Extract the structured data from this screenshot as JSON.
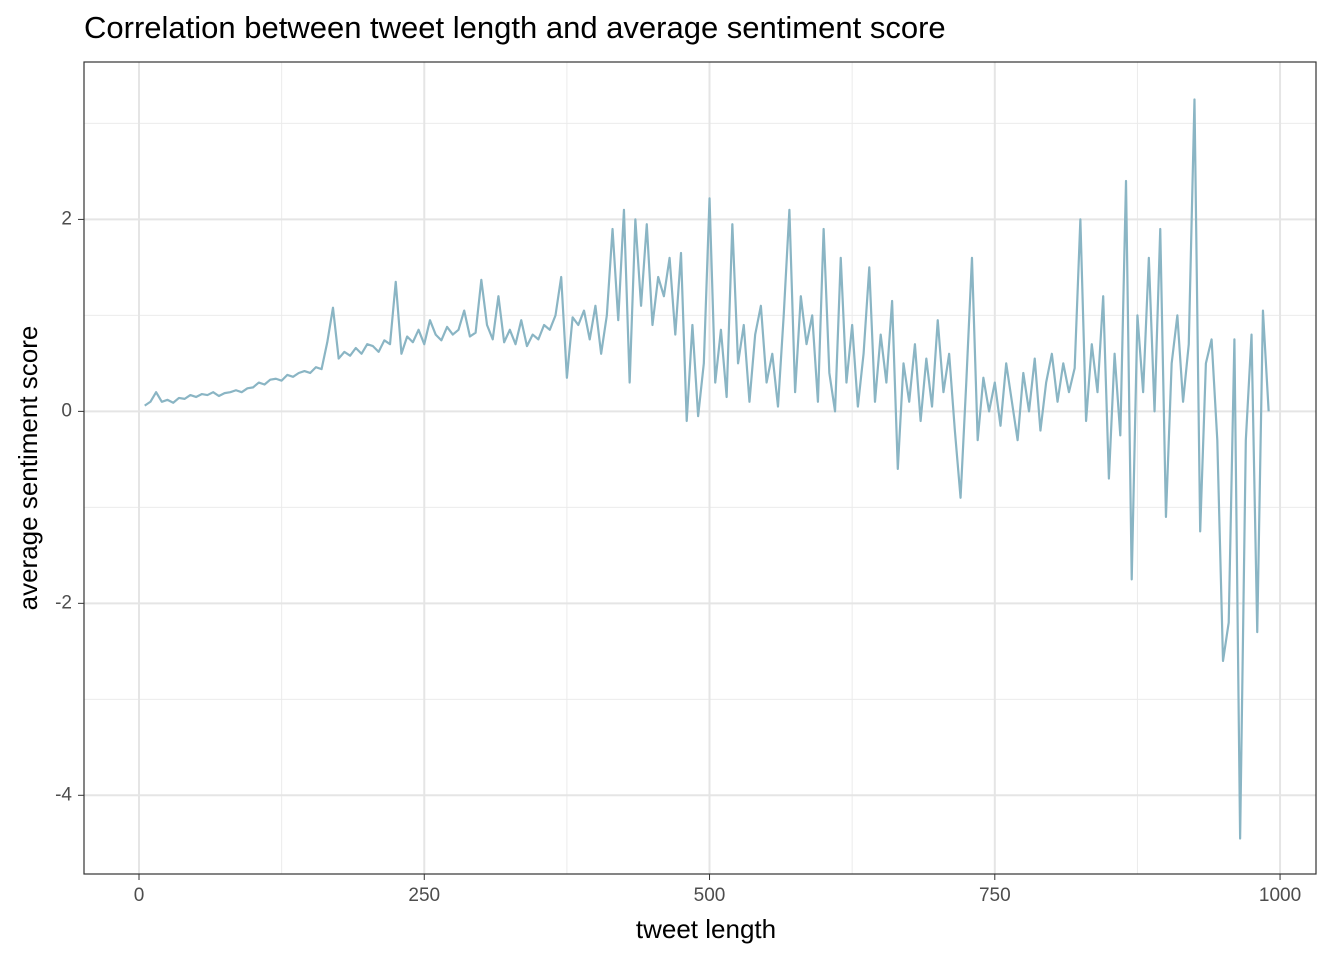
{
  "chart_data": {
    "type": "line",
    "title": "Correlation between tweet length and average sentiment score",
    "x_label": "tweet length",
    "y_label": "average sentiment score",
    "color": "#8ab5c4",
    "grid": true,
    "xlim": [
      -48.2,
      1031.5
    ],
    "ylim": [
      -4.82,
      3.64
    ],
    "xticks": [
      0,
      250,
      500,
      750,
      1000
    ],
    "yticks": [
      -4,
      -2,
      0,
      2
    ],
    "x": [
      5,
      10,
      15,
      20,
      25,
      30,
      35,
      40,
      45,
      50,
      55,
      60,
      65,
      70,
      75,
      80,
      85,
      90,
      95,
      100,
      105,
      110,
      115,
      120,
      125,
      130,
      135,
      140,
      145,
      150,
      155,
      160,
      165,
      170,
      175,
      180,
      185,
      190,
      195,
      200,
      205,
      210,
      215,
      220,
      225,
      230,
      235,
      240,
      245,
      250,
      255,
      260,
      265,
      270,
      275,
      280,
      285,
      290,
      295,
      300,
      305,
      310,
      315,
      320,
      325,
      330,
      335,
      340,
      345,
      350,
      355,
      360,
      365,
      370,
      375,
      380,
      385,
      390,
      395,
      400,
      405,
      410,
      415,
      420,
      425,
      430,
      435,
      440,
      445,
      450,
      455,
      460,
      465,
      470,
      475,
      480,
      485,
      490,
      495,
      500,
      505,
      510,
      515,
      520,
      525,
      530,
      535,
      540,
      545,
      550,
      555,
      560,
      565,
      570,
      575,
      580,
      585,
      590,
      595,
      600,
      605,
      610,
      615,
      620,
      625,
      630,
      635,
      640,
      645,
      650,
      655,
      660,
      665,
      670,
      675,
      680,
      685,
      690,
      695,
      700,
      705,
      710,
      715,
      720,
      725,
      730,
      735,
      740,
      745,
      750,
      755,
      760,
      765,
      770,
      775,
      780,
      785,
      790,
      795,
      800,
      805,
      810,
      815,
      820,
      825,
      830,
      835,
      840,
      845,
      850,
      855,
      860,
      865,
      870,
      875,
      880,
      885,
      890,
      895,
      900,
      905,
      910,
      915,
      920,
      925,
      930,
      935,
      940,
      945,
      950,
      955,
      960,
      965,
      970,
      975,
      980,
      985,
      990
    ],
    "values": [
      0.06,
      0.1,
      0.2,
      0.1,
      0.12,
      0.09,
      0.14,
      0.13,
      0.17,
      0.15,
      0.18,
      0.17,
      0.2,
      0.16,
      0.19,
      0.2,
      0.22,
      0.2,
      0.24,
      0.25,
      0.3,
      0.28,
      0.33,
      0.34,
      0.32,
      0.38,
      0.36,
      0.4,
      0.42,
      0.4,
      0.46,
      0.44,
      0.72,
      1.08,
      0.55,
      0.62,
      0.58,
      0.66,
      0.6,
      0.7,
      0.68,
      0.62,
      0.74,
      0.7,
      1.35,
      0.6,
      0.78,
      0.72,
      0.85,
      0.7,
      0.95,
      0.8,
      0.74,
      0.88,
      0.8,
      0.85,
      1.05,
      0.78,
      0.82,
      1.37,
      0.9,
      0.75,
      1.2,
      0.72,
      0.85,
      0.7,
      0.95,
      0.68,
      0.8,
      0.75,
      0.9,
      0.85,
      1.0,
      1.4,
      0.35,
      0.98,
      0.9,
      1.05,
      0.75,
      1.1,
      0.6,
      1.0,
      1.9,
      0.95,
      2.1,
      0.3,
      2.0,
      1.1,
      1.95,
      0.9,
      1.4,
      1.2,
      1.6,
      0.8,
      1.65,
      -0.1,
      0.9,
      -0.05,
      0.5,
      2.22,
      0.3,
      0.85,
      0.15,
      1.95,
      0.5,
      0.9,
      0.1,
      0.8,
      1.1,
      0.3,
      0.6,
      0.05,
      1.0,
      2.1,
      0.2,
      1.2,
      0.7,
      1.0,
      0.1,
      1.9,
      0.4,
      0.0,
      1.6,
      0.3,
      0.9,
      0.05,
      0.6,
      1.5,
      0.1,
      0.8,
      0.3,
      1.15,
      -0.6,
      0.5,
      0.1,
      0.7,
      -0.1,
      0.55,
      0.05,
      0.95,
      0.2,
      0.6,
      -0.2,
      -0.9,
      0.3,
      1.6,
      -0.3,
      0.35,
      0.0,
      0.3,
      -0.15,
      0.5,
      0.1,
      -0.3,
      0.4,
      0.0,
      0.55,
      -0.2,
      0.3,
      0.6,
      0.1,
      0.5,
      0.2,
      0.45,
      2.0,
      -0.1,
      0.7,
      0.2,
      1.2,
      -0.7,
      0.6,
      -0.25,
      2.4,
      -1.75,
      1.0,
      0.2,
      1.6,
      0.0,
      1.9,
      -1.1,
      0.5,
      1.0,
      0.1,
      0.7,
      3.25,
      -1.25,
      0.5,
      0.75,
      -0.3,
      -2.6,
      -2.2,
      0.75,
      -4.45,
      -0.3,
      0.8,
      -2.3,
      1.05,
      0.0
    ]
  }
}
